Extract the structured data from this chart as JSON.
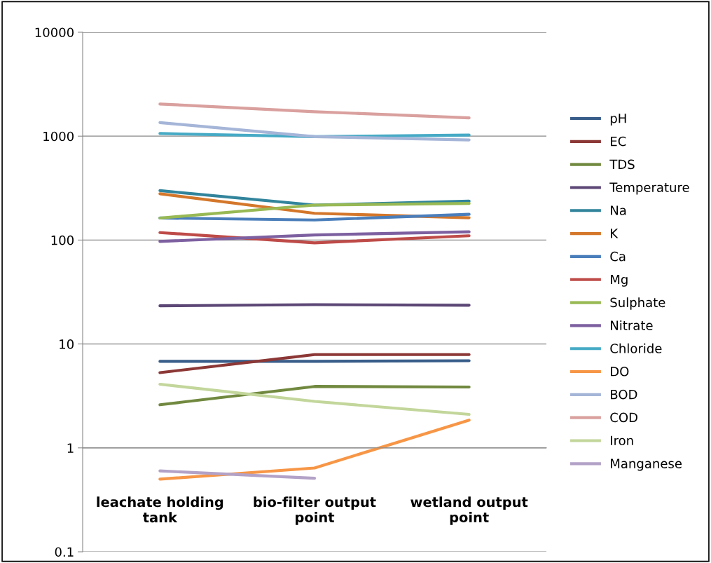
{
  "chart_data": {
    "type": "line",
    "categories": [
      "leachate holding\ntank",
      "bio-filter output\npoint",
      "wetland output\npoint"
    ],
    "series": [
      {
        "name": "pH",
        "color": "#385d8a",
        "values": [
          6.8,
          6.8,
          6.9
        ]
      },
      {
        "name": "EC",
        "color": "#8c3836",
        "values": [
          5.3,
          7.9,
          7.9
        ]
      },
      {
        "name": "TDS",
        "color": "#71893f",
        "values": [
          2.6,
          3.9,
          3.85
        ]
      },
      {
        "name": "Temperature",
        "color": "#5c4776",
        "values": [
          23.3,
          23.9,
          23.6
        ]
      },
      {
        "name": "Na",
        "color": "#31849b",
        "values": [
          299,
          217,
          237
        ]
      },
      {
        "name": "K",
        "color": "#d4772a",
        "values": [
          279,
          181,
          164
        ]
      },
      {
        "name": "Ca",
        "color": "#4a7ebb",
        "values": [
          163,
          156,
          177
        ]
      },
      {
        "name": "Mg",
        "color": "#be4b48",
        "values": [
          118,
          94,
          110
        ]
      },
      {
        "name": "Sulphate",
        "color": "#98b954",
        "values": [
          163,
          217,
          225
        ]
      },
      {
        "name": "Nitrate",
        "color": "#7d60a0",
        "values": [
          97,
          112,
          120
        ]
      },
      {
        "name": "Chloride",
        "color": "#46aac5",
        "values": [
          1060,
          990,
          1025
        ]
      },
      {
        "name": "DO",
        "color": "#f79646",
        "values": [
          0.5,
          0.64,
          1.85
        ]
      },
      {
        "name": "BOD",
        "color": "#a5b5d8",
        "values": [
          1350,
          990,
          920
        ]
      },
      {
        "name": "COD",
        "color": "#d9a09e",
        "values": [
          2040,
          1720,
          1500
        ]
      },
      {
        "name": "Iron",
        "color": "#c3d69b",
        "values": [
          4.1,
          2.8,
          2.1
        ]
      },
      {
        "name": "Manganese",
        "color": "#b3a2c7",
        "values": [
          0.6,
          0.51,
          null
        ]
      }
    ],
    "log": "y",
    "ylim": [
      0.1,
      10000
    ],
    "yticks": [
      0.1,
      1,
      10,
      100,
      1000,
      10000
    ],
    "grid": "y",
    "legend": "right",
    "marker": "none",
    "line_style": "solid"
  }
}
